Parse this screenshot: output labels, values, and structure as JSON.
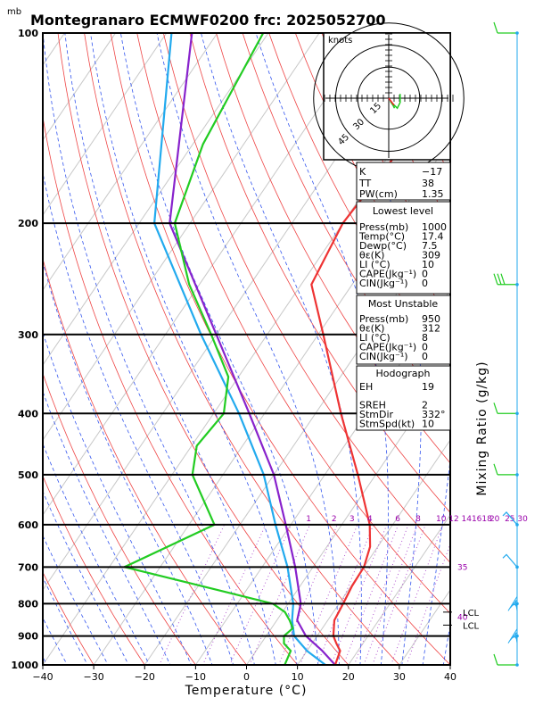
{
  "header": {
    "title": "Montegranaro ECMWF0200 frc: 2025052700",
    "unit_mb": "mb"
  },
  "chart_data": {
    "type": "skew-t",
    "xlabel": "Temperature (°C)",
    "ylabel": "Mixing Ratio (g/kg)",
    "x_ticks": [
      "−40",
      "−30",
      "−20",
      "−10",
      "0",
      "10",
      "20",
      "30",
      "40"
    ],
    "x_range": [
      -40,
      40
    ],
    "p_range": [
      1000,
      100
    ],
    "p_ticks": [
      1000,
      900,
      800,
      700,
      600,
      500,
      400,
      300,
      200,
      100
    ],
    "mixing_ratio_labels": [
      "1",
      "2",
      "3",
      "4",
      "6",
      "8",
      "10",
      "12",
      "14",
      "16",
      "18",
      "20",
      "25",
      "30"
    ],
    "mixing_ratio_label_temps": [
      -6.5,
      -1.5,
      2,
      5.5,
      11,
      15,
      19.5,
      22,
      24.5,
      26.5,
      28.5,
      30,
      33,
      35.5
    ],
    "lcl_labels": [
      "LCL",
      "LCL"
    ],
    "lcl_pressures": [
      825,
      865
    ],
    "side_labels": [
      {
        "text": "35",
        "p": 700
      },
      {
        "text": "40",
        "p": 840
      }
    ],
    "temperature": {
      "color": "#ee3333",
      "p": [
        1000,
        950,
        925,
        900,
        850,
        800,
        750,
        700,
        650,
        600,
        500,
        400,
        300,
        250,
        200,
        150,
        100
      ],
      "t": [
        17.4,
        16.5,
        14.8,
        13.2,
        11.3,
        10.8,
        10.2,
        10.0,
        8.5,
        5.5,
        -3.5,
        -15,
        -29,
        -38,
        -40,
        -38.5,
        -37.5
      ]
    },
    "dewpoint": {
      "color": "#22cc22",
      "p": [
        1000,
        950,
        925,
        900,
        875,
        850,
        825,
        800,
        700,
        600,
        500,
        450,
        400,
        350,
        300,
        250,
        200,
        150,
        100
      ],
      "t": [
        7.5,
        6.8,
        4.5,
        3.5,
        4.2,
        2.5,
        0.5,
        -3,
        -37,
        -25,
        -36,
        -39,
        -38,
        -42,
        -51,
        -62,
        -73,
        -78,
        -81
      ]
    },
    "parcel_purple": {
      "color": "#8822cc",
      "p": [
        1000,
        950,
        900,
        850,
        800,
        700,
        600,
        500,
        400,
        300,
        200,
        100
      ],
      "t": [
        17.4,
        13.0,
        7.8,
        4.0,
        2.5,
        -3.5,
        -11,
        -20,
        -33,
        -50,
        -74,
        -95
      ]
    },
    "parcel_blue": {
      "color": "#22aaee",
      "p": [
        1000,
        950,
        900,
        850,
        800,
        700,
        600,
        500,
        400,
        300,
        200,
        100
      ],
      "t": [
        15.5,
        10.0,
        5.5,
        3.0,
        1.0,
        -5,
        -13,
        -22,
        -35,
        -53,
        -77,
        -99
      ]
    },
    "hodograph": {
      "label": "knots",
      "rings": [
        15,
        30,
        45
      ],
      "trace": [
        [
          1,
          -2
        ],
        [
          3,
          -5
        ],
        [
          4,
          -7
        ],
        [
          3,
          -4
        ],
        [
          6,
          -7
        ],
        [
          8,
          -3
        ],
        [
          8,
          3
        ]
      ]
    },
    "wind_barbs": [
      {
        "p": 100,
        "type": "half"
      },
      {
        "p": 250,
        "type": "multi"
      },
      {
        "p": 400,
        "type": "full"
      },
      {
        "p": 500,
        "type": "full"
      },
      {
        "p": 600,
        "type": "hook"
      },
      {
        "p": 700,
        "type": "hook"
      },
      {
        "p": 800,
        "type": "cluster"
      },
      {
        "p": 900,
        "type": "cluster"
      },
      {
        "p": 1000,
        "type": "half"
      }
    ]
  },
  "indices": {
    "top": [
      {
        "label": "K",
        "value": "−17"
      },
      {
        "label": "TT",
        "value": "38"
      },
      {
        "label": "PW(cm)",
        "value": "1.35"
      }
    ],
    "lowest_level": {
      "heading": "Lowest level",
      "rows": [
        {
          "label": "Press(mb)",
          "value": "1000"
        },
        {
          "label": "Temp(°C)",
          "value": "17.4"
        },
        {
          "label": "Dewp(°C)",
          "value": "7.5"
        },
        {
          "label": "θε(K)",
          "value": "309"
        },
        {
          "label": "LI (°C)",
          "value": "10"
        },
        {
          "label": "CAPE(Jkg⁻¹)",
          "value": "0"
        },
        {
          "label": "CIN(Jkg⁻¹)",
          "value": "0"
        }
      ]
    },
    "most_unstable": {
      "heading": "Most Unstable",
      "rows": [
        {
          "label": "Press(mb)",
          "value": "950"
        },
        {
          "label": "θε(K)",
          "value": "312"
        },
        {
          "label": "LI (°C)",
          "value": "8"
        },
        {
          "label": "CAPE(Jkg⁻¹)",
          "value": "0"
        },
        {
          "label": "CIN(Jkg⁻¹)",
          "value": "0"
        }
      ]
    },
    "hodograph_box": {
      "heading": "Hodograph",
      "rows": [
        {
          "label": "EH",
          "value": "19"
        },
        {
          "label": "SREH",
          "value": "2"
        },
        {
          "label": "StmDir",
          "value": "332°"
        },
        {
          "label": "StmSpd(kt)",
          "value": "10"
        }
      ]
    }
  }
}
